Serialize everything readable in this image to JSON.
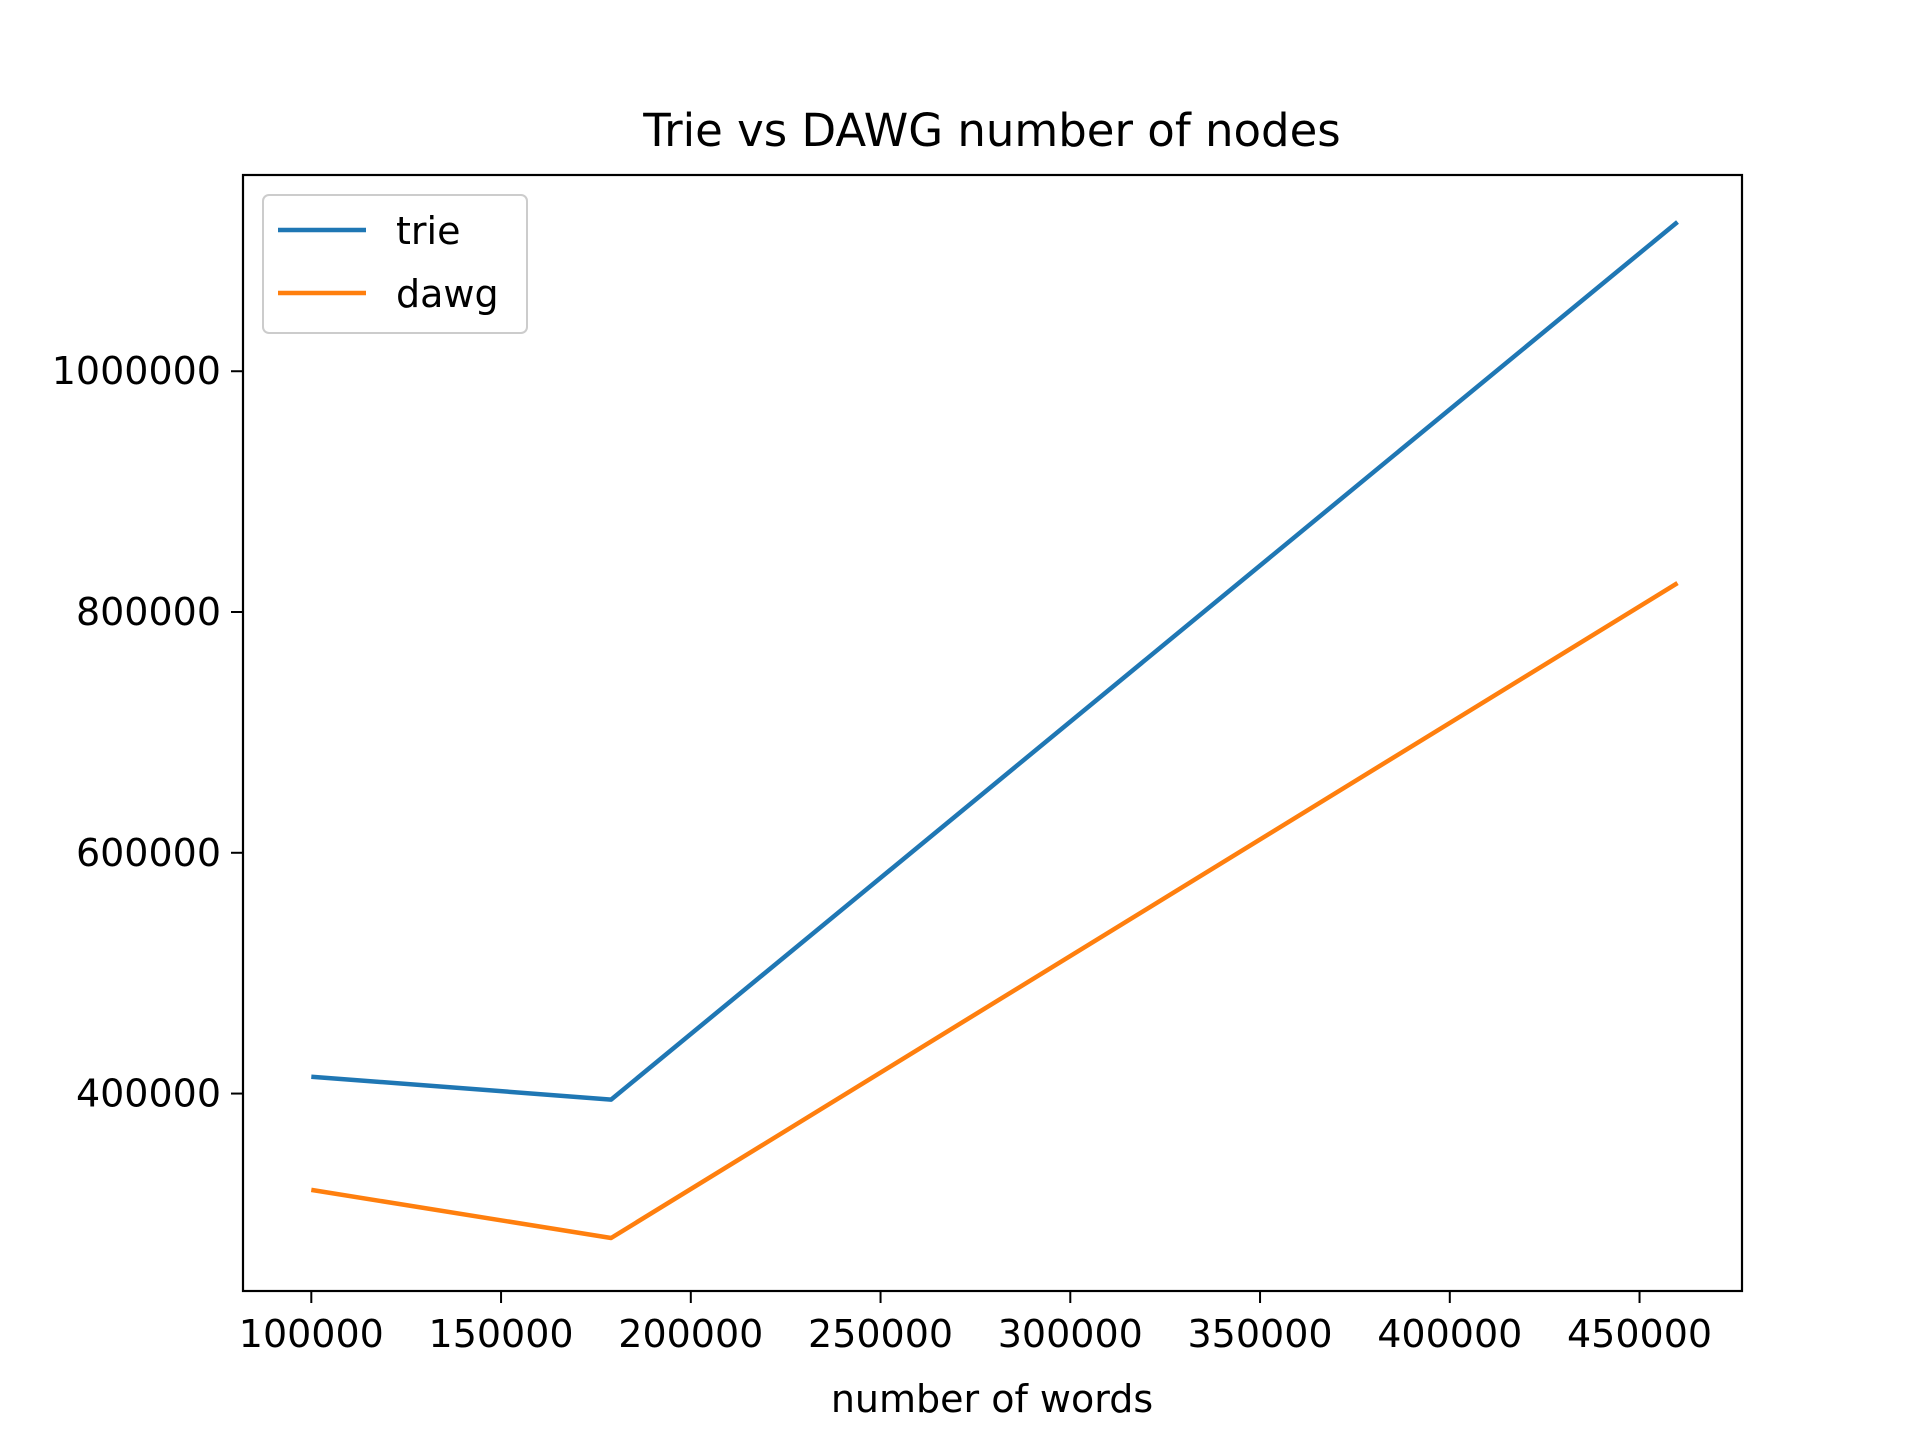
{
  "chart_data": {
    "type": "line",
    "title": "Trie vs DAWG number of nodes",
    "xlabel": "number of words",
    "ylabel": "",
    "x": [
      100000,
      179000,
      460000
    ],
    "series": [
      {
        "name": "trie",
        "color": "#1f77b4",
        "values": [
          414000,
          395000,
          1124000
        ]
      },
      {
        "name": "dawg",
        "color": "#ff7f0e",
        "values": [
          320000,
          280000,
          824000
        ]
      }
    ],
    "xlim": [
      82000,
      477000
    ],
    "ylim": [
      236000,
      1163000
    ],
    "xticks": [
      100000,
      150000,
      200000,
      250000,
      300000,
      350000,
      400000,
      450000
    ],
    "xtick_labels": [
      "100000",
      "150000",
      "200000",
      "250000",
      "300000",
      "350000",
      "400000",
      "450000"
    ],
    "yticks": [
      400000,
      600000,
      800000,
      1000000
    ],
    "ytick_labels": [
      "400000",
      "600000",
      "800000",
      "1000000"
    ],
    "grid": false,
    "legend_position": "top-left"
  }
}
